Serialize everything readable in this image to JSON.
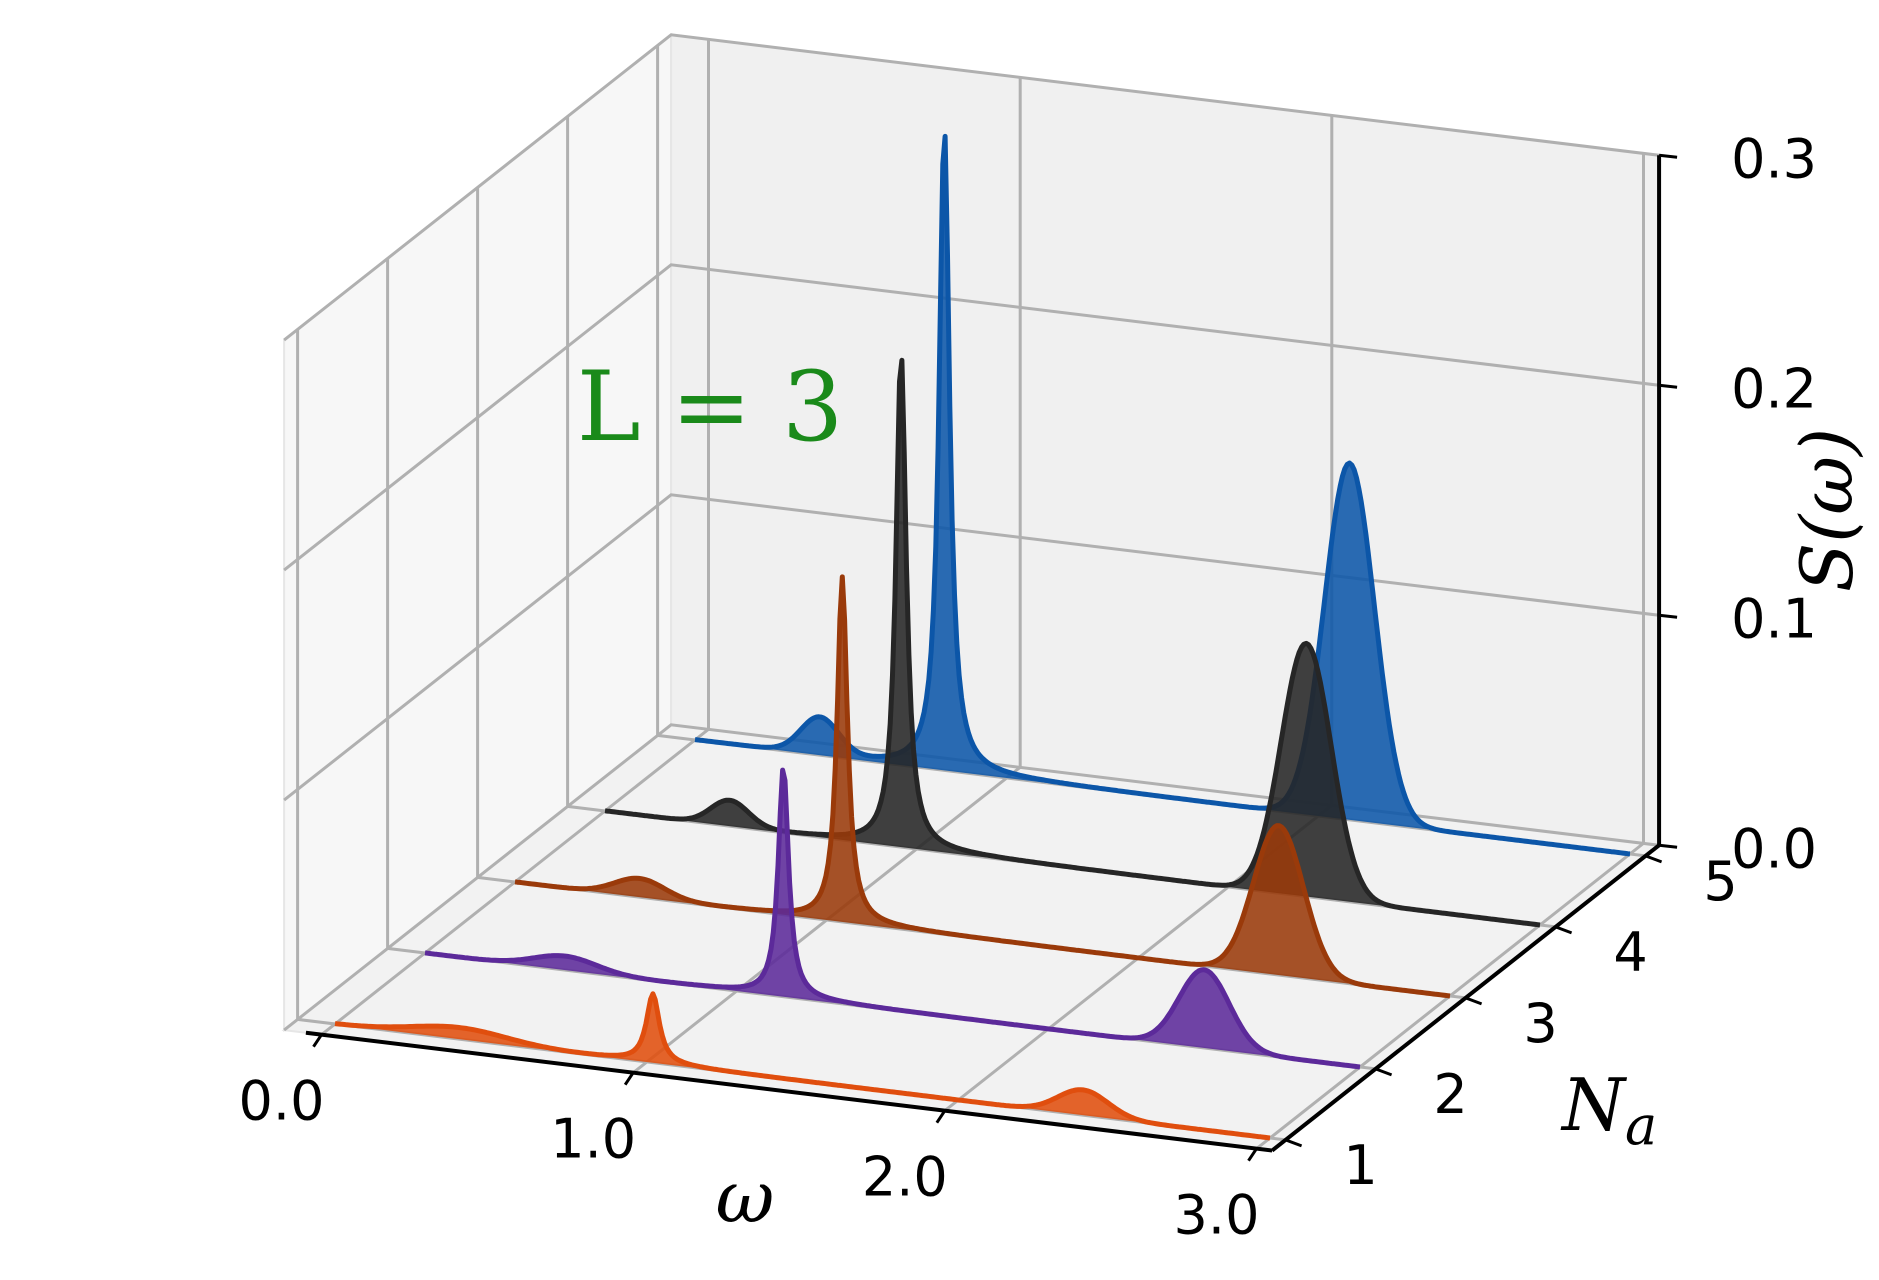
{
  "chart_data": {
    "type": "area",
    "projection": "3d-waterfall",
    "annotation": "L = 3",
    "annotation_color": "#1a8a1a",
    "xlabel": "ω",
    "ylabel": "N_a",
    "zlabel": "S(ω)",
    "xlim": [
      0.0,
      3.0
    ],
    "ylim": [
      1,
      5
    ],
    "zlim": [
      0.0,
      0.3
    ],
    "x_ticks": [
      "0.0",
      "1.0",
      "2.0",
      "3.0"
    ],
    "y_ticks": [
      "1",
      "2",
      "3",
      "4",
      "5"
    ],
    "z_ticks": [
      "0.0",
      "0.1",
      "0.2",
      "0.3"
    ],
    "grid": true,
    "series": [
      {
        "Na": 1,
        "color": "#e04e0e",
        "baseline": 0.0,
        "peaks": [
          {
            "center": 0.4,
            "height": 0.005,
            "width": 0.15,
            "shape": "gaussian"
          },
          {
            "center": 1.02,
            "height": 0.03,
            "width": 0.025,
            "shape": "lorentzian"
          },
          {
            "center": 2.4,
            "height": 0.011,
            "width": 0.08,
            "shape": "gaussian"
          }
        ]
      },
      {
        "Na": 2,
        "color": "#5c2a9a",
        "baseline": 0.0,
        "peaks": [
          {
            "center": 0.45,
            "height": 0.006,
            "width": 0.1,
            "shape": "gaussian"
          },
          {
            "center": 1.15,
            "height": 0.1,
            "width": 0.02,
            "shape": "lorentzian"
          },
          {
            "center": 2.5,
            "height": 0.034,
            "width": 0.08,
            "shape": "gaussian"
          }
        ]
      },
      {
        "Na": 3,
        "color": "#9a3a0a",
        "baseline": 0.0,
        "peaks": [
          {
            "center": 0.4,
            "height": 0.008,
            "width": 0.08,
            "shape": "gaussian"
          },
          {
            "center": 1.05,
            "height": 0.15,
            "width": 0.02,
            "shape": "lorentzian"
          },
          {
            "center": 2.45,
            "height": 0.065,
            "width": 0.08,
            "shape": "gaussian"
          }
        ]
      },
      {
        "Na": 4,
        "color": "#262626",
        "baseline": 0.0,
        "peaks": [
          {
            "center": 0.4,
            "height": 0.011,
            "width": 0.06,
            "shape": "gaussian"
          },
          {
            "center": 0.95,
            "height": 0.215,
            "width": 0.02,
            "shape": "lorentzian"
          },
          {
            "center": 2.25,
            "height": 0.11,
            "width": 0.08,
            "shape": "gaussian"
          }
        ]
      },
      {
        "Na": 5,
        "color": "#0c56a8",
        "baseline": 0.0,
        "peaks": [
          {
            "center": 0.4,
            "height": 0.016,
            "width": 0.06,
            "shape": "gaussian"
          },
          {
            "center": 0.8,
            "height": 0.28,
            "width": 0.02,
            "shape": "lorentzian"
          },
          {
            "center": 2.1,
            "height": 0.155,
            "width": 0.08,
            "shape": "gaussian"
          }
        ]
      }
    ]
  }
}
